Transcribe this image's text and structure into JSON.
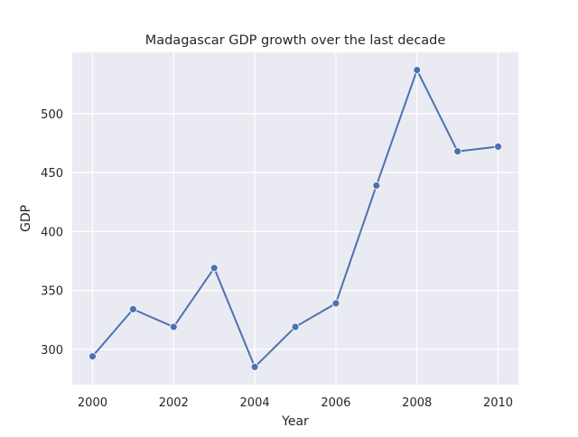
{
  "chart_data": {
    "type": "line",
    "title": "Madagascar GDP growth over the last decade",
    "xlabel": "Year",
    "ylabel": "GDP",
    "x": [
      2000,
      2001,
      2002,
      2003,
      2004,
      2005,
      2006,
      2007,
      2008,
      2009,
      2010
    ],
    "series": [
      {
        "values": [
          294,
          334,
          319,
          369,
          285,
          319,
          339,
          439,
          537,
          468,
          472
        ],
        "color": "#4c72b0"
      }
    ],
    "xlim": [
      1999.5,
      2010.5
    ],
    "ylim": [
      270,
      552
    ],
    "xticks": [
      2000,
      2002,
      2004,
      2006,
      2008,
      2010
    ],
    "yticks": [
      300,
      350,
      400,
      450,
      500
    ],
    "grid": true,
    "marker": "circle",
    "background_color": "#eaeaf2",
    "grid_color": "#ffffff"
  }
}
